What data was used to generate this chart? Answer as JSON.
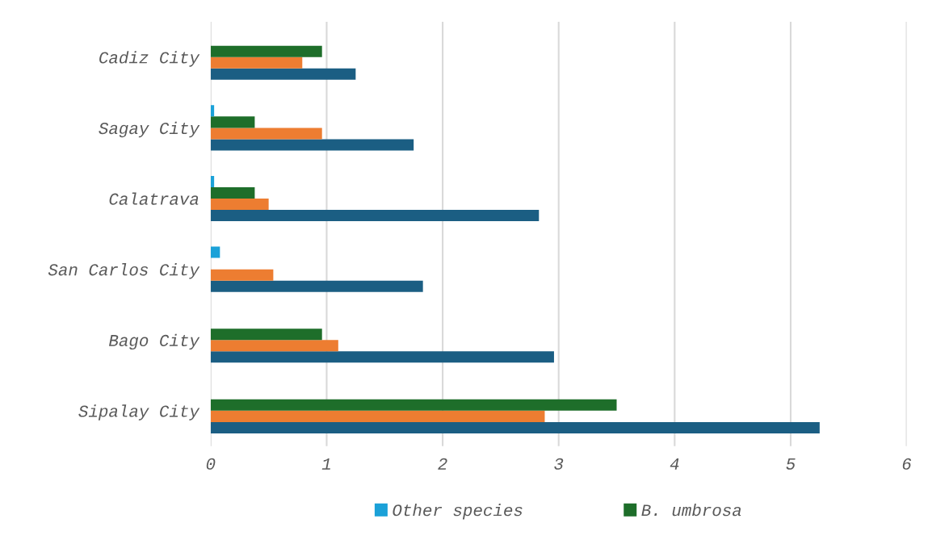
{
  "chart_data": {
    "type": "bar",
    "orientation": "horizontal",
    "categories": [
      "Cadiz City",
      "Sagay City",
      "Calatrava",
      "San Carlos City",
      "Bago City",
      "Sipalay City"
    ],
    "series": [
      {
        "color": "#1b5e83",
        "values": [
          1.25,
          1.75,
          2.83,
          1.83,
          2.96,
          5.25
        ]
      },
      {
        "color": "#ed7d31",
        "values": [
          0.79,
          0.96,
          0.5,
          0.54,
          1.1,
          2.88
        ]
      },
      {
        "name": "B. umbrosa",
        "color": "#1e6e2a",
        "values": [
          0.96,
          0.38,
          0.38,
          null,
          0.96,
          3.5
        ]
      },
      {
        "name": "Other species",
        "color": "#1ba1d8",
        "values": [
          null,
          0.03,
          0.03,
          0.08,
          null,
          null
        ]
      }
    ],
    "xlim": [
      0,
      6
    ],
    "xticks": [
      0,
      1,
      2,
      3,
      4,
      5,
      6
    ],
    "grid": "x",
    "legend": "bottom"
  }
}
